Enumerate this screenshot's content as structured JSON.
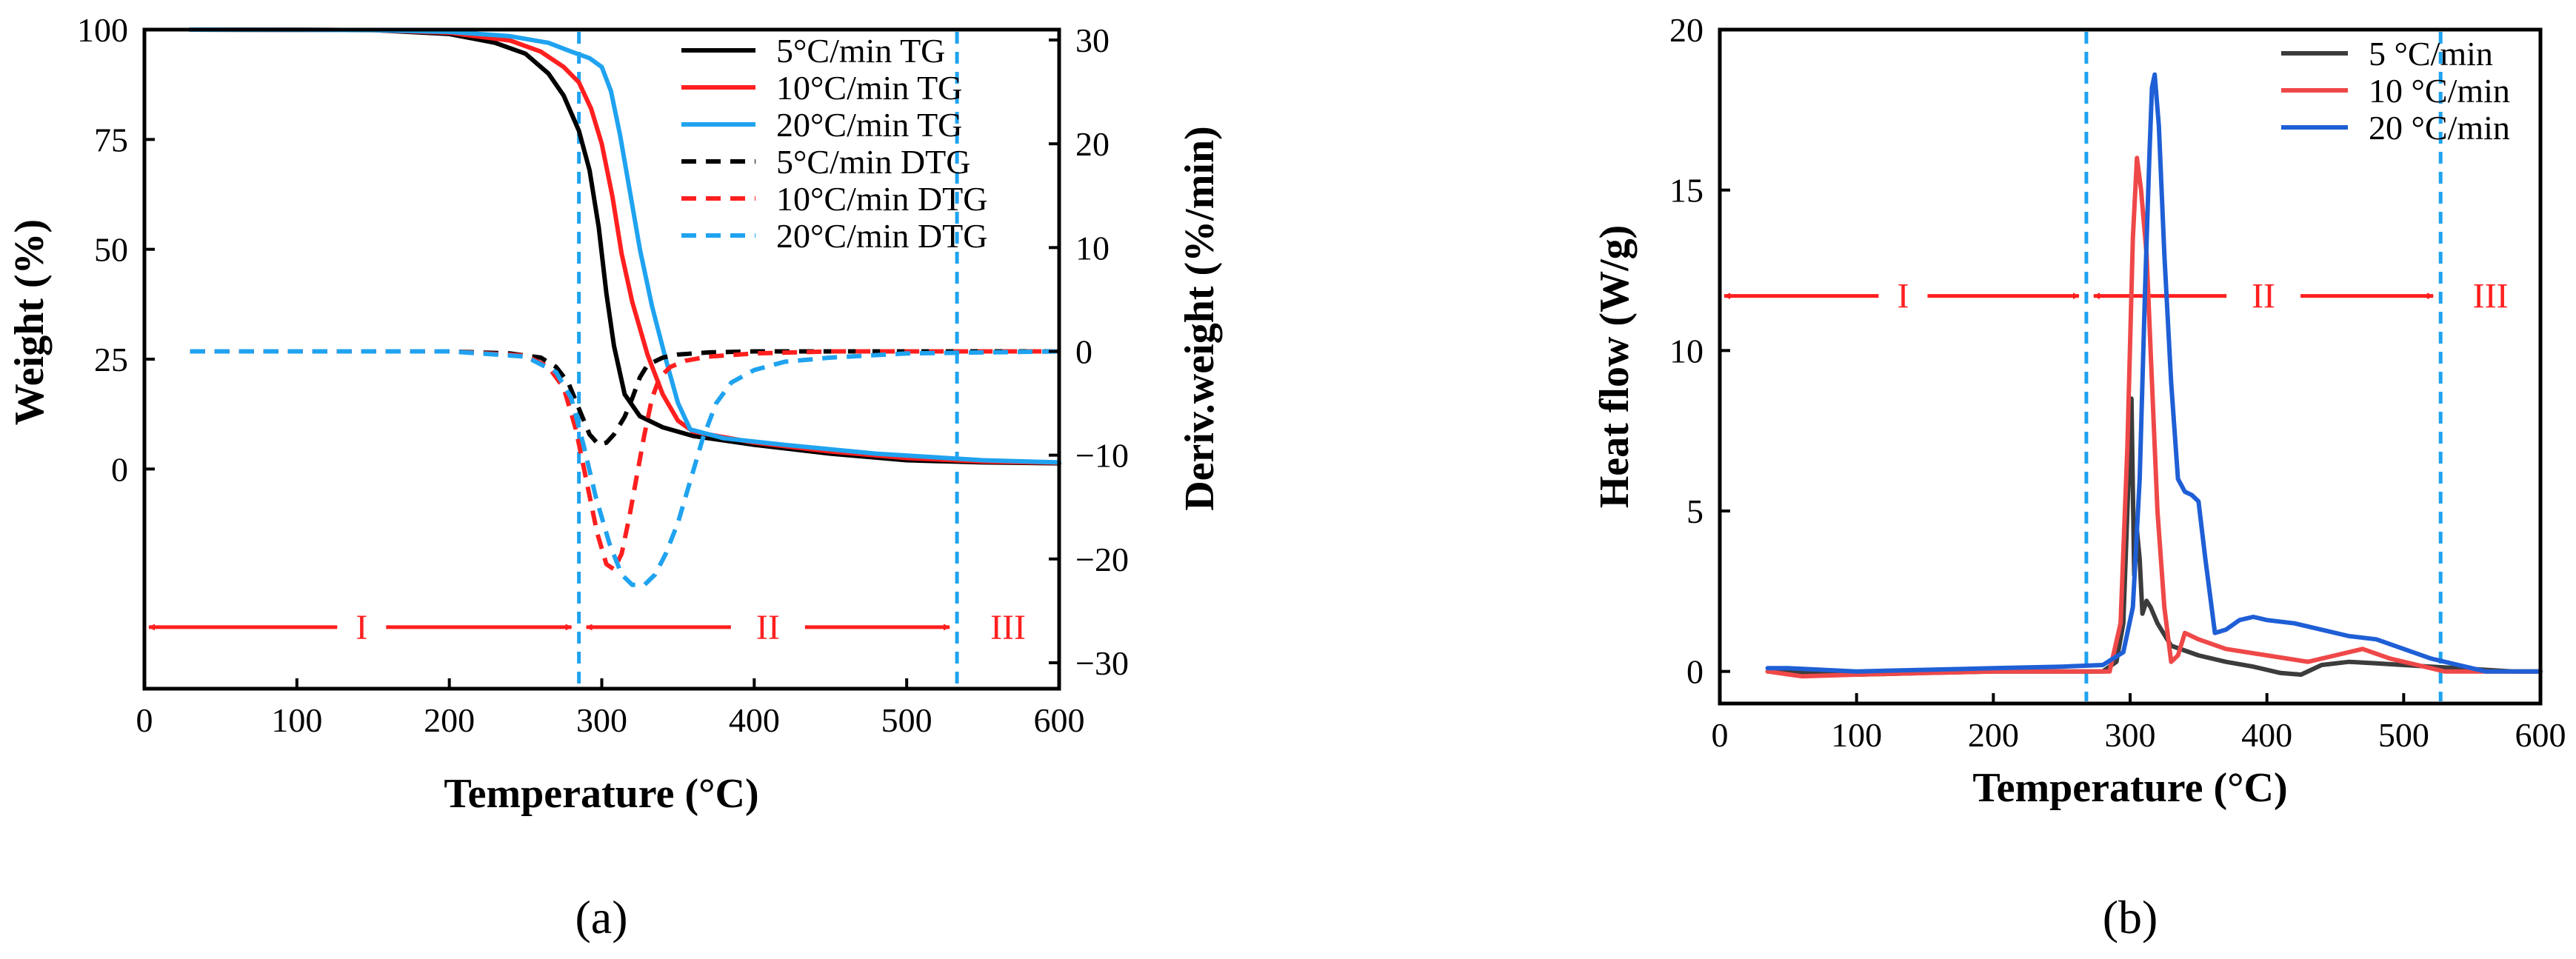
{
  "colors": {
    "black": "#000000",
    "red": "#ff1f1f",
    "blue": "#1fa3f0",
    "blue_b": "#1f5fd6",
    "grey_b": "#3c3c3c",
    "red_b": "#ef4848",
    "divider": "#1fa3f0",
    "region": "#ff1f1f"
  },
  "chart_data": [
    {
      "id": "a",
      "type": "line",
      "caption": "(a)",
      "xlabel": "Temperature (°C)",
      "ylabel": "Weight (%)",
      "y2label": "Deriv.weight (%/min)",
      "xlim": [
        0,
        600
      ],
      "ylim": [
        -50,
        100
      ],
      "y2lim": [
        -32.5,
        31
      ],
      "xticks": [
        "0",
        "100",
        "200",
        "300",
        "400",
        "500",
        "600"
      ],
      "yticks": [
        "0",
        "25",
        "50",
        "75",
        "100"
      ],
      "y2ticks": [
        "−30",
        "−20",
        "−10",
        "0",
        "10",
        "20",
        "30"
      ],
      "legend_position": "top-right",
      "dividers_x": [
        285,
        533
      ],
      "regions": [
        {
          "label": "I",
          "from": 0,
          "to": 285,
          "y": -36
        },
        {
          "label": "II",
          "from": 285,
          "to": 533,
          "y": -36
        },
        {
          "label": "III",
          "from": 533,
          "to": 600,
          "y": -36
        }
      ],
      "series": [
        {
          "name": "5°C/min TG",
          "axis": "left",
          "style": "solid",
          "color": "black",
          "x": [
            30,
            150,
            200,
            230,
            250,
            265,
            275,
            285,
            292,
            298,
            303,
            308,
            315,
            325,
            340,
            360,
            400,
            450,
            500,
            550,
            600
          ],
          "y": [
            100,
            99.9,
            99,
            97,
            94.5,
            90,
            85,
            77,
            68,
            55,
            40,
            28,
            17,
            12,
            9.5,
            7.5,
            5.5,
            3.5,
            2,
            1.5,
            1.3
          ]
        },
        {
          "name": "10°C/min TG",
          "axis": "left",
          "style": "solid",
          "color": "red",
          "x": [
            30,
            150,
            200,
            240,
            260,
            275,
            285,
            293,
            300,
            307,
            313,
            320,
            330,
            340,
            350,
            360,
            400,
            450,
            500,
            550,
            600
          ],
          "y": [
            100,
            99.9,
            99.3,
            97.5,
            95,
            91.5,
            88,
            82,
            74,
            62,
            49,
            38,
            26,
            17,
            11,
            8.5,
            6,
            4,
            2.5,
            1.7,
            1.4
          ]
        },
        {
          "name": "20°C/min TG",
          "axis": "left",
          "style": "solid",
          "color": "blue",
          "x": [
            30,
            150,
            200,
            240,
            265,
            280,
            292,
            300,
            306,
            312,
            318,
            325,
            333,
            342,
            350,
            358,
            380,
            420,
            480,
            550,
            600
          ],
          "y": [
            100,
            99.9,
            99.5,
            98.5,
            97,
            95,
            93.5,
            91.5,
            86,
            76,
            64,
            50,
            37,
            25,
            15,
            9,
            7,
            5.5,
            3.5,
            2,
            1.5
          ]
        },
        {
          "name": "5°C/min DTG",
          "axis": "right",
          "style": "dashed",
          "color": "black",
          "x": [
            30,
            200,
            240,
            260,
            270,
            278,
            285,
            292,
            298,
            303,
            308,
            315,
            320,
            325,
            330,
            340,
            350,
            370,
            400,
            450,
            600
          ],
          "y": [
            0,
            0,
            -0.2,
            -0.6,
            -1.5,
            -3,
            -5.5,
            -8,
            -9,
            -8.8,
            -8,
            -6.3,
            -4.5,
            -2.5,
            -1.3,
            -0.6,
            -0.3,
            -0.1,
            0,
            0,
            0
          ]
        },
        {
          "name": "10°C/min DTG",
          "axis": "right",
          "style": "dashed",
          "color": "red",
          "x": [
            30,
            200,
            250,
            265,
            275,
            283,
            290,
            297,
            303,
            308,
            313,
            318,
            323,
            328,
            333,
            338,
            345,
            355,
            370,
            400,
            450,
            600
          ],
          "y": [
            0,
            0,
            -0.4,
            -1.5,
            -3.5,
            -7.5,
            -12.5,
            -17.5,
            -20.5,
            -21,
            -19.5,
            -16,
            -12,
            -8,
            -4.5,
            -2.5,
            -1.5,
            -0.9,
            -0.5,
            -0.2,
            0,
            0
          ]
        },
        {
          "name": "20°C/min DTG",
          "axis": "right",
          "style": "dashed",
          "color": "blue",
          "x": [
            30,
            200,
            250,
            270,
            280,
            288,
            296,
            305,
            313,
            320,
            328,
            335,
            342,
            350,
            358,
            366,
            375,
            385,
            400,
            420,
            450,
            500,
            600
          ],
          "y": [
            0,
            0,
            -0.5,
            -2,
            -4.5,
            -9,
            -14,
            -18.5,
            -21.5,
            -22.5,
            -22.5,
            -21.5,
            -19.5,
            -16.5,
            -12.5,
            -8.5,
            -5,
            -3,
            -1.8,
            -1,
            -0.6,
            -0.2,
            0
          ]
        }
      ]
    },
    {
      "id": "b",
      "type": "line",
      "caption": "(b)",
      "xlabel": "Temperature (°C)",
      "ylabel": "Heat flow (W/g)",
      "xlim": [
        0,
        600
      ],
      "ylim": [
        -1,
        20
      ],
      "xticks": [
        "0",
        "100",
        "200",
        "300",
        "400",
        "500",
        "600"
      ],
      "yticks": [
        "0",
        "5",
        "10",
        "15",
        "20"
      ],
      "legend_position": "top-right",
      "dividers_x": [
        268,
        527
      ],
      "regions": [
        {
          "label": "I",
          "from": 0,
          "to": 268,
          "y": 11.7
        },
        {
          "label": "II",
          "from": 268,
          "to": 527,
          "y": 11.7
        },
        {
          "label": "III",
          "from": 527,
          "to": 600,
          "y": 11.7
        }
      ],
      "series": [
        {
          "name": "5 °C/min",
          "color": "grey_b",
          "x": [
            35,
            50,
            100,
            150,
            200,
            250,
            280,
            290,
            295,
            298,
            301,
            303,
            305,
            307,
            309,
            312,
            315,
            320,
            330,
            350,
            370,
            390,
            410,
            425,
            440,
            460,
            480,
            500,
            520,
            540,
            560,
            580,
            600
          ],
          "y": [
            0,
            0,
            -0.1,
            -0.05,
            0,
            0,
            0,
            0.3,
            1.5,
            5,
            8.5,
            3,
            4.4,
            3.5,
            1.8,
            2.2,
            2,
            1.5,
            0.8,
            0.5,
            0.3,
            0.15,
            -0.05,
            -0.1,
            0.2,
            0.3,
            0.25,
            0.2,
            0.15,
            0.1,
            0.05,
            0,
            0
          ]
        },
        {
          "name": "10 °C/min",
          "color": "red_b",
          "x": [
            35,
            60,
            100,
            150,
            200,
            250,
            285,
            293,
            298,
            302,
            305,
            308,
            312,
            316,
            320,
            325,
            330,
            335,
            340,
            350,
            370,
            400,
            430,
            450,
            470,
            490,
            510,
            530,
            560,
            600
          ],
          "y": [
            0,
            -0.15,
            -0.1,
            -0.05,
            0,
            0,
            0,
            1.5,
            7,
            13.5,
            16,
            15,
            13,
            9,
            5,
            2,
            0.3,
            0.5,
            1.2,
            1,
            0.7,
            0.5,
            0.3,
            0.5,
            0.7,
            0.4,
            0.2,
            0,
            0,
            0
          ]
        },
        {
          "name": "20 °C/min",
          "color": "blue_b",
          "x": [
            35,
            50,
            100,
            150,
            200,
            250,
            280,
            295,
            302,
            307,
            311,
            314,
            316,
            318,
            321,
            325,
            330,
            335,
            340,
            345,
            350,
            355,
            362,
            370,
            380,
            390,
            400,
            420,
            440,
            460,
            480,
            500,
            520,
            540,
            560,
            580,
            600
          ],
          "y": [
            0.1,
            0.1,
            0,
            0.05,
            0.1,
            0.15,
            0.2,
            0.6,
            2,
            6,
            12,
            16,
            18.2,
            18.6,
            17,
            13,
            9,
            6,
            5.6,
            5.5,
            5.3,
            3.5,
            1.2,
            1.3,
            1.6,
            1.7,
            1.6,
            1.5,
            1.3,
            1.1,
            1,
            0.7,
            0.4,
            0.2,
            0,
            0,
            0
          ]
        }
      ]
    }
  ]
}
